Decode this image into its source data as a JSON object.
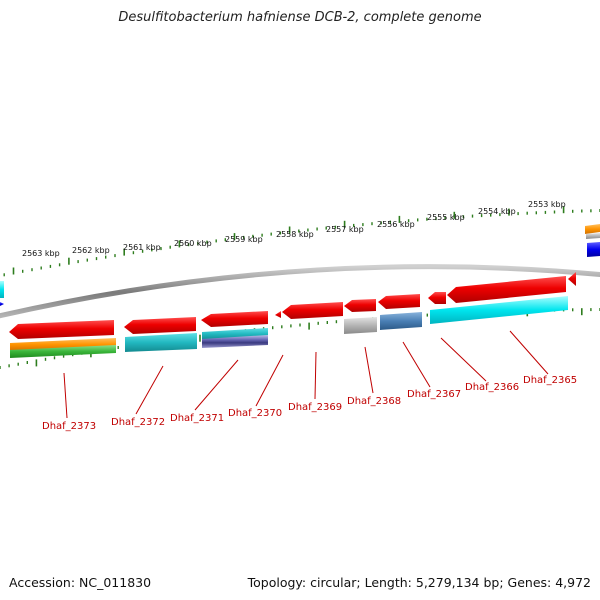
{
  "title": "Desulfitobacterium hafniense DCB-2, complete genome",
  "footer": {
    "accession": "Accession: NC_011830",
    "topology": "Topology: circular; Length: 5,279,134 bp; Genes: 4,972"
  },
  "ruler": {
    "labels": [
      "2563 kbp",
      "2562 kbp",
      "2561 kbp",
      "2560 kbp",
      "2559 kbp",
      "2558 kbp",
      "2557 kbp",
      "2556 kbp",
      "2555 kbp",
      "2554 kbp",
      "2553 kbp"
    ]
  },
  "genes": [
    "Dhaf_2373",
    "Dhaf_2372",
    "Dhaf_2371",
    "Dhaf_2370",
    "Dhaf_2369",
    "Dhaf_2368",
    "Dhaf_2367",
    "Dhaf_2366",
    "Dhaf_2365"
  ],
  "colors": {
    "backbone": "#8a8a8a",
    "gene": "#ee0000",
    "tick": "#2e7d1e",
    "label": "#c00000",
    "cyan": "#00e5ee",
    "teal": "#22c1c8",
    "orange": "#ff9a00",
    "green": "#3ab53a",
    "purple": "#5a5aa6",
    "grey": "#b0b0b0",
    "steel": "#4a7fb5",
    "blue": "#0000ee"
  }
}
